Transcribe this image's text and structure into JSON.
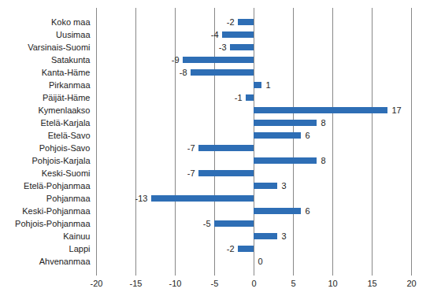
{
  "chart_data": {
    "type": "bar",
    "orientation": "horizontal",
    "categories": [
      "Koko maa",
      "Uusimaa",
      "Varsinais-Suomi",
      "Satakunta",
      "Kanta-Häme",
      "Pirkanmaa",
      "Päijät-Häme",
      "Kymenlaakso",
      "Etelä-Karjala",
      "Etelä-Savo",
      "Pohjois-Savo",
      "Pohjois-Karjala",
      "Keski-Suomi",
      "Etelä-Pohjanmaa",
      "Pohjanmaa",
      "Keski-Pohjanmaa",
      "Pohjois-Pohjanmaa",
      "Kainuu",
      "Lappi",
      "Ahvenanmaa"
    ],
    "values": [
      -2,
      -4,
      -3,
      -9,
      -8,
      1,
      -1,
      17,
      8,
      6,
      -7,
      8,
      -7,
      3,
      -13,
      6,
      -5,
      3,
      -2,
      0
    ],
    "color": "#2e6eb5",
    "xlim": [
      -20,
      20
    ],
    "xticks": [
      -20,
      -15,
      -10,
      -5,
      0,
      5,
      10,
      15,
      20
    ],
    "grid": true,
    "data_labels": true
  }
}
